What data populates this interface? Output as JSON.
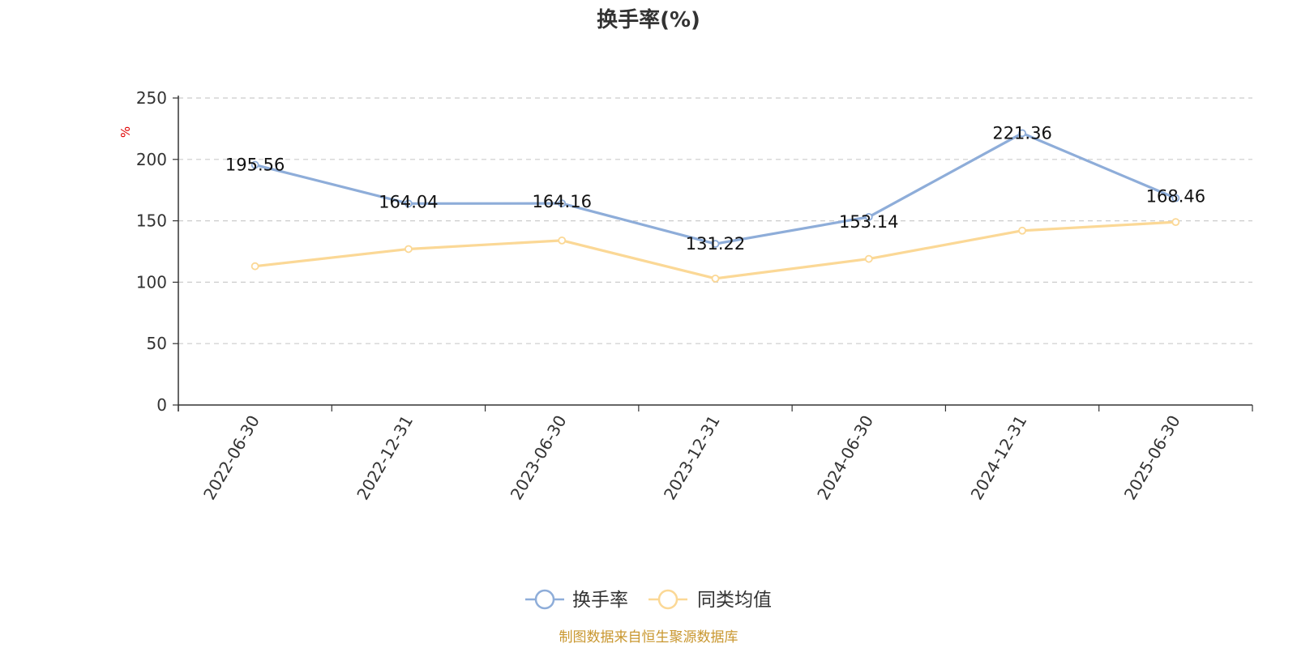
{
  "chart_data": {
    "type": "line",
    "title": "换手率(%)",
    "ylabel": "%",
    "ylim": [
      0,
      250
    ],
    "yticks": [
      0,
      50,
      100,
      150,
      200,
      250
    ],
    "categories": [
      "2022-06-30",
      "2022-12-31",
      "2023-06-30",
      "2023-12-31",
      "2024-06-30",
      "2024-12-31",
      "2025-06-30"
    ],
    "series": [
      {
        "name": "换手率",
        "color": "#8eadd9",
        "values": [
          195.56,
          164.04,
          164.16,
          131.22,
          153.14,
          221.36,
          168.46
        ],
        "labels": [
          "195.56",
          "164.04",
          "164.16",
          "131.22",
          "153.14",
          "221.36",
          "168.46"
        ]
      },
      {
        "name": "同类均值",
        "color": "#fbd896",
        "values": [
          113,
          127,
          134,
          103,
          119,
          142,
          149
        ],
        "labels": []
      }
    ],
    "grid": true,
    "legend_position": "bottom-center"
  },
  "source_text": "制图数据来自恒生聚源数据库"
}
